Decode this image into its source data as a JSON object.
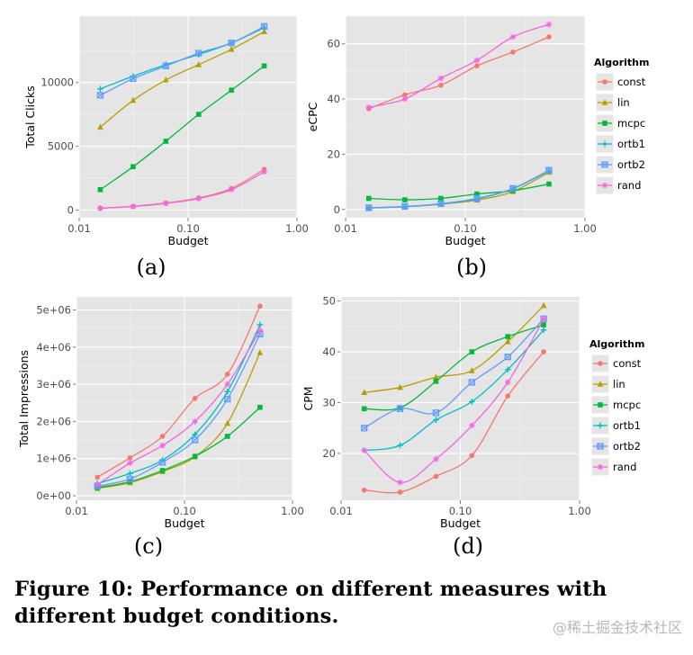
{
  "figure": {
    "caption": "Figure 10: Performance on different measures with different budget conditions.",
    "watermark": "@稀土掘金技术社区"
  },
  "legend": {
    "title": "Algorithm",
    "entries": [
      "const",
      "lin",
      "mcpc",
      "ortb1",
      "ortb2",
      "rand"
    ]
  },
  "colors": {
    "const": "#F8766D",
    "lin": "#B79F00",
    "mcpc": "#00BA38",
    "ortb1": "#00BFC4",
    "ortb2": "#619CFF",
    "rand": "#F564E3",
    "panel_bg": "#E5E5E5",
    "grid": "#FFFFFF"
  },
  "chart_data": [
    {
      "type": "line",
      "panel_label": "(a)",
      "xlabel": "Budget",
      "ylabel": "Total Clicks",
      "x_scale": "log",
      "xlim": [
        0.01,
        1.0
      ],
      "ylim": [
        -600,
        15200
      ],
      "x_ticks": [
        0.01,
        0.1,
        1.0
      ],
      "x_tick_labels": [
        "0.01",
        "0.10",
        "1.00"
      ],
      "y_ticks": [
        0,
        5000,
        10000
      ],
      "y_tick_labels": [
        "0",
        "5000",
        "10000"
      ],
      "grid": true,
      "legend": "none",
      "x": [
        0.015625,
        0.03125,
        0.0625,
        0.125,
        0.25,
        0.5
      ],
      "series": [
        {
          "name": "const",
          "values": [
            150,
            300,
            550,
            950,
            1700,
            3200
          ]
        },
        {
          "name": "lin",
          "values": [
            6500,
            8600,
            10200,
            11400,
            12600,
            14000
          ]
        },
        {
          "name": "mcpc",
          "values": [
            1600,
            3400,
            5400,
            7500,
            9400,
            11300
          ]
        },
        {
          "name": "ortb1",
          "values": [
            9500,
            10500,
            11400,
            12200,
            13100,
            14300
          ]
        },
        {
          "name": "ortb2",
          "values": [
            9000,
            10300,
            11300,
            12300,
            13100,
            14400
          ]
        },
        {
          "name": "rand",
          "values": [
            150,
            280,
            520,
            900,
            1600,
            3000
          ]
        }
      ]
    },
    {
      "type": "line",
      "panel_label": "(b)",
      "xlabel": "Budget",
      "ylabel": "eCPC",
      "x_scale": "log",
      "xlim": [
        0.01,
        1.0
      ],
      "ylim": [
        -3,
        70
      ],
      "x_ticks": [
        0.01,
        0.1,
        1.0
      ],
      "x_tick_labels": [
        "0.01",
        "0.10",
        "1.00"
      ],
      "y_ticks": [
        0,
        20,
        40,
        60
      ],
      "y_tick_labels": [
        "0",
        "20",
        "40",
        "60"
      ],
      "grid": true,
      "legend": "right",
      "x": [
        0.015625,
        0.03125,
        0.0625,
        0.125,
        0.25,
        0.5
      ],
      "series": [
        {
          "name": "const",
          "values": [
            36.5,
            41.5,
            45,
            52,
            57,
            62.5
          ]
        },
        {
          "name": "lin",
          "values": [
            0.6,
            1.0,
            1.9,
            3.4,
            6.5,
            13.5
          ]
        },
        {
          "name": "mcpc",
          "values": [
            4.0,
            3.5,
            4.0,
            5.6,
            6.8,
            9.2
          ]
        },
        {
          "name": "ortb1",
          "values": [
            0.5,
            1.0,
            2.0,
            3.8,
            7.5,
            14.0
          ]
        },
        {
          "name": "ortb2",
          "values": [
            0.6,
            1.1,
            2.1,
            4.0,
            7.6,
            14.2
          ]
        },
        {
          "name": "rand",
          "values": [
            37,
            40,
            47.5,
            54,
            62.5,
            67
          ]
        }
      ]
    },
    {
      "type": "line",
      "panel_label": "(c)",
      "xlabel": "Budget",
      "ylabel": "Total Impressions",
      "x_scale": "log",
      "xlim": [
        0.01,
        1.0
      ],
      "ylim": [
        -120000,
        5350000
      ],
      "x_ticks": [
        0.01,
        0.1,
        1.0
      ],
      "x_tick_labels": [
        "0.01",
        "0.10",
        "1.00"
      ],
      "y_ticks": [
        0,
        1000000,
        2000000,
        3000000,
        4000000,
        5000000
      ],
      "y_tick_labels": [
        "0e+00",
        "1e+06",
        "2e+06",
        "3e+06",
        "4e+06",
        "5e+06"
      ],
      "grid": true,
      "legend": "none",
      "x": [
        0.015625,
        0.03125,
        0.0625,
        0.125,
        0.25,
        0.5
      ],
      "series": [
        {
          "name": "const",
          "values": [
            500000,
            1020000,
            1600000,
            2620000,
            3270000,
            5100000
          ]
        },
        {
          "name": "lin",
          "values": [
            200000,
            350000,
            650000,
            1050000,
            1950000,
            3850000
          ]
        },
        {
          "name": "mcpc",
          "values": [
            220000,
            380000,
            680000,
            1060000,
            1600000,
            2380000
          ]
        },
        {
          "name": "ortb1",
          "values": [
            330000,
            600000,
            960000,
            1650000,
            2800000,
            4600000
          ]
        },
        {
          "name": "ortb2",
          "values": [
            260000,
            450000,
            900000,
            1500000,
            2600000,
            4350000
          ]
        },
        {
          "name": "rand",
          "values": [
            300000,
            880000,
            1350000,
            2000000,
            3000000,
            4450000
          ]
        }
      ]
    },
    {
      "type": "line",
      "panel_label": "(d)",
      "xlabel": "Budget",
      "ylabel": "CPM",
      "x_scale": "log",
      "xlim": [
        0.01,
        1.0
      ],
      "ylim": [
        10.8,
        50.8
      ],
      "x_ticks": [
        0.01,
        0.1,
        1.0
      ],
      "x_tick_labels": [
        "0.01",
        "0.10",
        "1.00"
      ],
      "y_ticks": [
        20,
        30,
        40,
        50
      ],
      "y_tick_labels": [
        "20",
        "30",
        "40",
        "50"
      ],
      "grid": true,
      "legend": "right",
      "x": [
        0.015625,
        0.03125,
        0.0625,
        0.125,
        0.25,
        0.5
      ],
      "series": [
        {
          "name": "const",
          "values": [
            12.8,
            12.4,
            15.5,
            19.6,
            31.3,
            40.0
          ]
        },
        {
          "name": "lin",
          "values": [
            32.0,
            33.0,
            35.0,
            36.3,
            42.0,
            49.1
          ]
        },
        {
          "name": "mcpc",
          "values": [
            28.8,
            29.0,
            34.2,
            40.0,
            43.0,
            45.3
          ]
        },
        {
          "name": "ortb1",
          "values": [
            20.6,
            21.6,
            26.6,
            30.2,
            36.5,
            44.3
          ]
        },
        {
          "name": "ortb2",
          "values": [
            25.0,
            28.8,
            28.0,
            34.0,
            39.0,
            46.5
          ]
        },
        {
          "name": "rand",
          "values": [
            20.6,
            14.3,
            18.9,
            25.5,
            34.0,
            46.5
          ]
        }
      ]
    }
  ]
}
